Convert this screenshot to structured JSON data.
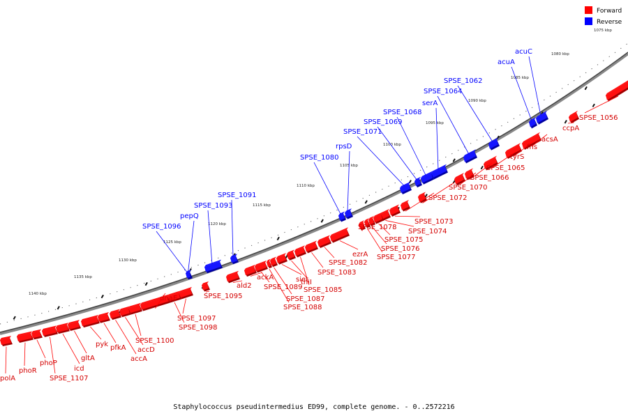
{
  "legend": {
    "forward": {
      "label": "Forward",
      "color": "#ff0000"
    },
    "reverse": {
      "label": "Reverse",
      "color": "#0000ff"
    }
  },
  "caption": "Staphylococcus pseudintermedius ED99, complete genome. - 0..2572216",
  "ticks": [
    "1075 kbp",
    "1080 kbp",
    "1085 kbp",
    "1090 kbp",
    "1095 kbp",
    "1100 kbp",
    "1105 kbp",
    "1110 kbp",
    "1115 kbp",
    "1120 kbp",
    "1125 kbp",
    "1130 kbp",
    "1135 kbp",
    "1140 kbp"
  ],
  "reverse_genes": [
    "acuC",
    "acuA",
    "SPSE_1062",
    "SPSE_1064",
    "serA",
    "SPSE_1068",
    "SPSE_1069",
    "SPSE_1071",
    "rpsD",
    "SPSE_1080",
    "SPSE_1091",
    "SPSE_1093",
    "pepQ",
    "SPSE_1096"
  ],
  "forward_genes": [
    "SPSE_1056",
    "ccpA",
    "acsA",
    "fhs",
    "tyrS",
    "SPSE_1065",
    "SPSE_1066",
    "SPSE_1070",
    "SPSE_1072",
    "SPSE_1073",
    "SPSE_1074",
    "SPSE_1075",
    "SPSE_1076",
    "SPSE_1077",
    "SPSE_1078",
    "ezrA",
    "SPSE_1082",
    "SPSE_1083",
    "SPSE_1085",
    "thiI",
    "siet",
    "SPSE_1087",
    "SPSE_1088",
    "SPSE_1089",
    "ackA",
    "ald2",
    "SPSE_1095",
    "SPSE_1097",
    "SPSE_1098",
    "dnaE",
    "SPSE_1100",
    "accD",
    "accA",
    "pfkA",
    "pyk",
    "gltA",
    "icd",
    "SPSE_1107",
    "phoP",
    "phoR",
    "polA"
  ]
}
